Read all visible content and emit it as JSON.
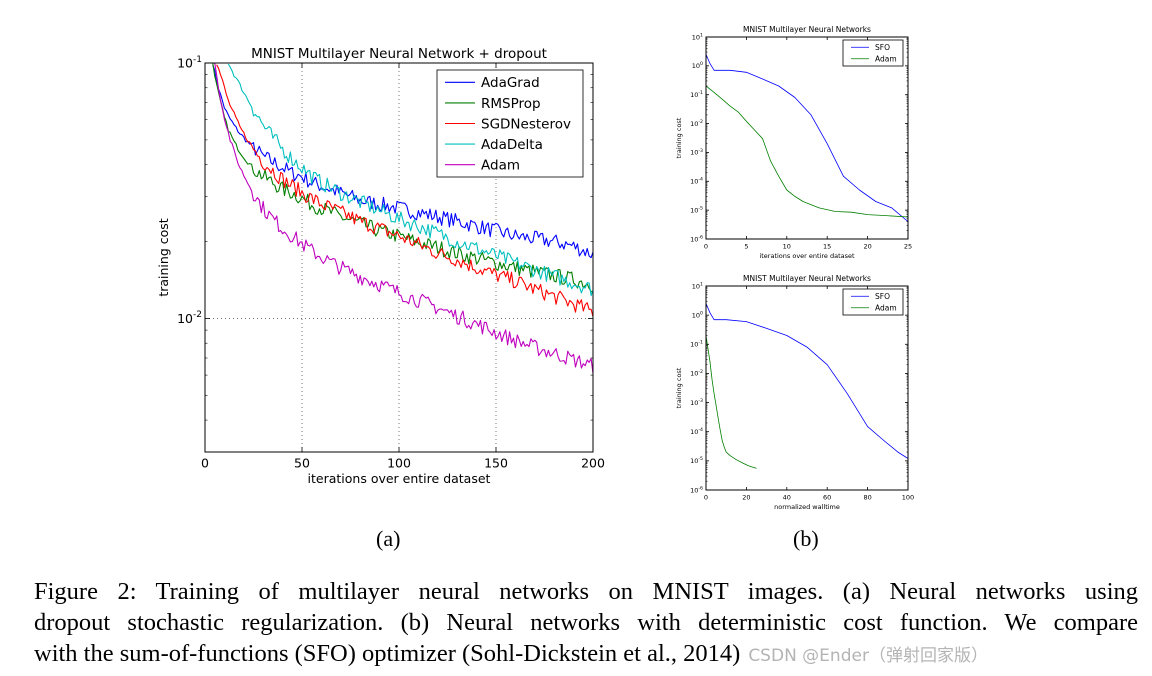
{
  "chart_data": [
    {
      "type": "line",
      "title": "MNIST Multilayer Neural Network + dropout",
      "xlabel": "iterations over entire dataset",
      "ylabel": "training cost",
      "xlim": [
        0,
        200
      ],
      "ylim": [
        0.003,
        0.1
      ],
      "yscale": "log",
      "xticks": [
        "0",
        "50",
        "100",
        "150",
        "200"
      ],
      "yticks": [
        {
          "base": "10",
          "exp": "-1"
        },
        {
          "base": "10",
          "exp": "-2"
        }
      ],
      "grid": true,
      "legend_position": "upper-right",
      "series": [
        {
          "name": "AdaGrad",
          "color": "#0000ff",
          "x": [
            4,
            6,
            8,
            10,
            12,
            15,
            18,
            22,
            26,
            30,
            35,
            40,
            45,
            50,
            55,
            60,
            70,
            80,
            90,
            100,
            110,
            120,
            130,
            140,
            150,
            160,
            170,
            180,
            190,
            200
          ],
          "y": [
            0.1,
            0.085,
            0.075,
            0.067,
            0.062,
            0.057,
            0.053,
            0.049,
            0.046,
            0.043,
            0.041,
            0.039,
            0.037,
            0.036,
            0.034,
            0.033,
            0.031,
            0.029,
            0.028,
            0.027,
            0.026,
            0.025,
            0.024,
            0.023,
            0.022,
            0.021,
            0.0205,
            0.02,
            0.0192,
            0.0178
          ]
        },
        {
          "name": "RMSProp",
          "color": "#007f00",
          "x": [
            4,
            6,
            8,
            10,
            12,
            15,
            18,
            22,
            26,
            30,
            35,
            40,
            45,
            50,
            55,
            60,
            70,
            80,
            90,
            100,
            110,
            120,
            130,
            140,
            150,
            160,
            170,
            180,
            190,
            200
          ],
          "y": [
            0.1,
            0.082,
            0.07,
            0.061,
            0.055,
            0.049,
            0.045,
            0.041,
            0.038,
            0.036,
            0.034,
            0.032,
            0.031,
            0.0295,
            0.028,
            0.027,
            0.025,
            0.0235,
            0.022,
            0.021,
            0.0198,
            0.019,
            0.018,
            0.0172,
            0.0165,
            0.0158,
            0.0152,
            0.0147,
            0.0142,
            0.0135
          ]
        },
        {
          "name": "SGDNesterov",
          "color": "#ff0000",
          "x": [
            6,
            8,
            10,
            12,
            15,
            18,
            22,
            26,
            30,
            35,
            40,
            45,
            50,
            55,
            60,
            70,
            80,
            90,
            100,
            110,
            120,
            130,
            140,
            150,
            160,
            170,
            180,
            190,
            200
          ],
          "y": [
            0.1,
            0.09,
            0.08,
            0.071,
            0.063,
            0.056,
            0.05,
            0.045,
            0.041,
            0.038,
            0.035,
            0.033,
            0.031,
            0.0295,
            0.028,
            0.026,
            0.024,
            0.0225,
            0.021,
            0.0195,
            0.018,
            0.017,
            0.0158,
            0.0148,
            0.014,
            0.013,
            0.0122,
            0.0114,
            0.0106
          ]
        },
        {
          "name": "AdaDelta",
          "color": "#00bfbf",
          "x": [
            12,
            15,
            18,
            22,
            26,
            30,
            35,
            40,
            45,
            50,
            55,
            60,
            70,
            80,
            90,
            100,
            110,
            120,
            130,
            140,
            150,
            160,
            170,
            180,
            190,
            200
          ],
          "y": [
            0.1,
            0.09,
            0.082,
            0.072,
            0.064,
            0.057,
            0.051,
            0.046,
            0.042,
            0.039,
            0.036,
            0.034,
            0.031,
            0.0285,
            0.0265,
            0.0245,
            0.023,
            0.0215,
            0.02,
            0.0188,
            0.0176,
            0.0165,
            0.0155,
            0.0146,
            0.0138,
            0.013
          ]
        },
        {
          "name": "Adam",
          "color": "#bf00bf",
          "x": [
            5,
            7,
            9,
            11,
            13,
            15,
            18,
            22,
            26,
            30,
            35,
            40,
            45,
            50,
            55,
            60,
            70,
            80,
            90,
            100,
            110,
            120,
            130,
            140,
            150,
            160,
            170,
            180,
            190,
            200
          ],
          "y": [
            0.1,
            0.08,
            0.066,
            0.057,
            0.05,
            0.045,
            0.039,
            0.034,
            0.03,
            0.027,
            0.0245,
            0.0225,
            0.021,
            0.0196,
            0.0184,
            0.0174,
            0.0158,
            0.0146,
            0.0136,
            0.0126,
            0.0118,
            0.011,
            0.0102,
            0.0095,
            0.0088,
            0.0082,
            0.0077,
            0.0073,
            0.0069,
            0.0065
          ]
        }
      ]
    },
    {
      "type": "line",
      "title": "MNIST Multilayer Neural Networks",
      "xlabel": "iterations over entire dataset",
      "ylabel": "training cost",
      "xlim": [
        0,
        25
      ],
      "ylim": [
        1e-06,
        10
      ],
      "yscale": "log",
      "xticks": [
        "0",
        "5",
        "10",
        "15",
        "20",
        "25"
      ],
      "yticks": [
        {
          "base": "10",
          "exp": "1"
        },
        {
          "base": "10",
          "exp": "0"
        },
        {
          "base": "10",
          "exp": "-1"
        },
        {
          "base": "10",
          "exp": "-2"
        },
        {
          "base": "10",
          "exp": "-3"
        },
        {
          "base": "10",
          "exp": "-4"
        },
        {
          "base": "10",
          "exp": "-5"
        },
        {
          "base": "10",
          "exp": "-6"
        }
      ],
      "grid": false,
      "legend_position": "upper-right",
      "series": [
        {
          "name": "SFO",
          "color": "#0000ff",
          "x": [
            0,
            0.5,
            1,
            3,
            5,
            7,
            9,
            11,
            13,
            15,
            17,
            19,
            21,
            23,
            25
          ],
          "y": [
            2.5,
            1.2,
            0.7,
            0.7,
            0.6,
            0.35,
            0.2,
            0.08,
            0.02,
            0.002,
            0.00015,
            5e-05,
            2e-05,
            1.2e-05,
            4e-06
          ]
        },
        {
          "name": "Adam",
          "color": "#007f00",
          "x": [
            0,
            1,
            2,
            3,
            4,
            5,
            6,
            7,
            8,
            9,
            10,
            11,
            12,
            14,
            16,
            18,
            20,
            22,
            25
          ],
          "y": [
            0.2,
            0.12,
            0.07,
            0.04,
            0.025,
            0.012,
            0.006,
            0.003,
            0.0005,
            0.00015,
            5e-05,
            3e-05,
            2e-05,
            1.2e-05,
            9e-06,
            8.5e-06,
            7e-06,
            6.5e-06,
            5.8e-06
          ]
        }
      ]
    },
    {
      "type": "line",
      "title": "MNIST Multilayer Neural Networks",
      "xlabel": "normalized walltime",
      "ylabel": "training cost",
      "xlim": [
        0,
        100
      ],
      "ylim": [
        1e-06,
        10
      ],
      "yscale": "log",
      "xticks": [
        "0",
        "20",
        "40",
        "60",
        "80",
        "100"
      ],
      "yticks": [
        {
          "base": "10",
          "exp": "1"
        },
        {
          "base": "10",
          "exp": "0"
        },
        {
          "base": "10",
          "exp": "-1"
        },
        {
          "base": "10",
          "exp": "-2"
        },
        {
          "base": "10",
          "exp": "-3"
        },
        {
          "base": "10",
          "exp": "-4"
        },
        {
          "base": "10",
          "exp": "-5"
        },
        {
          "base": "10",
          "exp": "-6"
        }
      ],
      "grid": false,
      "legend_position": "upper-right",
      "series": [
        {
          "name": "SFO",
          "color": "#0000ff",
          "x": [
            0,
            2,
            4,
            10,
            20,
            30,
            40,
            50,
            60,
            70,
            80,
            88,
            95,
            100
          ],
          "y": [
            2.5,
            1.2,
            0.7,
            0.7,
            0.6,
            0.35,
            0.2,
            0.08,
            0.02,
            0.002,
            0.00015,
            5e-05,
            2e-05,
            1.2e-05
          ]
        },
        {
          "name": "Adam",
          "color": "#007f00",
          "x": [
            0,
            1,
            2,
            3,
            4,
            5,
            6,
            7,
            8,
            9,
            10,
            12,
            15,
            18,
            21,
            25
          ],
          "y": [
            0.2,
            0.07,
            0.025,
            0.006,
            0.002,
            0.0008,
            0.0003,
            0.00012,
            5e-05,
            3e-05,
            2e-05,
            1.5e-05,
            1.1e-05,
            8.5e-06,
            6.8e-06,
            5.5e-06
          ]
        }
      ]
    }
  ],
  "subfigure_labels": [
    "(a)",
    "(b)"
  ],
  "caption": {
    "line1": "Figure 2:  Training of multilayer neural networks on MNIST images.  (a) Neural networks using",
    "line2": "dropout stochastic regularization. (b) Neural networks with deterministic cost function. We compare",
    "line3": "with the sum-of-functions (SFO) optimizer (Sohl-Dickstein et al., 2014)",
    "watermark": "CSDN @Ender（弹射回家版）"
  }
}
